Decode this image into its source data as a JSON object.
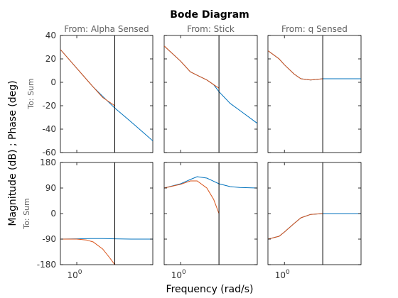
{
  "chart_data": {
    "type": "line",
    "title": "Bode Diagram",
    "xlabel": "Frequency  (rad/s)",
    "ylabel": "Magnitude (dB) ; Phase (deg)",
    "row_label": "To: Sum",
    "x_scale": "log",
    "xlim": [
      0.5,
      25
    ],
    "x_tick_label": "10^0",
    "x_tick_value": 1,
    "vline_x": 5.0,
    "grid": false,
    "colors": {
      "series_a": "#0072BD",
      "series_b": "#D95319"
    },
    "columns": [
      {
        "title": "From: Alpha Sensed"
      },
      {
        "title": "From: Stick"
      },
      {
        "title": "From: q Sensed"
      }
    ],
    "rows": [
      {
        "name": "magnitude",
        "ylim": [
          -60,
          40
        ],
        "yticks": [
          "40",
          "20",
          "0",
          "-20",
          "-40",
          "-60"
        ],
        "ytick_values": [
          40,
          20,
          0,
          -20,
          -40,
          -60
        ]
      },
      {
        "name": "phase",
        "ylim": [
          -180,
          180
        ],
        "yticks": [
          "180",
          "90",
          "0",
          "-90",
          "-180"
        ],
        "ytick_values": [
          180,
          90,
          0,
          -90,
          -180
        ]
      }
    ],
    "panels": [
      {
        "row": 0,
        "col": 0,
        "series": [
          {
            "color": "series_a",
            "x": [
              0.5,
              1,
              2,
              3,
              5,
              8,
              12,
              25
            ],
            "y": [
              28,
              12,
              -4,
              -12,
              -22,
              -30,
              -37,
              -50
            ]
          },
          {
            "color": "series_b",
            "x": [
              0.5,
              1,
              2,
              3,
              5
            ],
            "y": [
              28,
              12,
              -4,
              -13,
              -20
            ]
          }
        ]
      },
      {
        "row": 0,
        "col": 1,
        "series": [
          {
            "color": "series_a",
            "x": [
              0.5,
              1,
              1.5,
              2,
              3,
              4,
              5,
              8,
              12,
              25
            ],
            "y": [
              31,
              18,
              9,
              6,
              2,
              -2,
              -8,
              -18,
              -24,
              -35
            ]
          },
          {
            "color": "series_b",
            "x": [
              0.5,
              1,
              1.5,
              2,
              3,
              4,
              5
            ],
            "y": [
              31,
              18,
              9,
              6,
              2,
              -2,
              -5
            ]
          }
        ]
      },
      {
        "row": 0,
        "col": 2,
        "series": [
          {
            "color": "series_a",
            "x": [
              0.5,
              0.8,
              1,
              1.5,
              2,
              3,
              5,
              8,
              25
            ],
            "y": [
              27,
              20,
              15,
              7,
              3,
              2,
              3,
              3,
              3
            ]
          },
          {
            "color": "series_b",
            "x": [
              0.5,
              0.8,
              1,
              1.5,
              2,
              3,
              5
            ],
            "y": [
              27,
              20,
              15,
              7,
              3,
              2,
              3
            ]
          }
        ]
      },
      {
        "row": 1,
        "col": 0,
        "series": [
          {
            "color": "series_a",
            "x": [
              0.5,
              1,
              2,
              3,
              5,
              10,
              25
            ],
            "y": [
              -90,
              -89,
              -88,
              -88,
              -89,
              -90,
              -90
            ]
          },
          {
            "color": "series_b",
            "x": [
              0.5,
              1,
              1.5,
              2,
              3,
              4,
              5
            ],
            "y": [
              -90,
              -90,
              -93,
              -100,
              -125,
              -155,
              -180
            ]
          }
        ]
      },
      {
        "row": 1,
        "col": 1,
        "series": [
          {
            "color": "series_a",
            "x": [
              0.5,
              1,
              1.5,
              2,
              3,
              5,
              8,
              12,
              25
            ],
            "y": [
              90,
              105,
              120,
              130,
              125,
              105,
              95,
              92,
              90
            ]
          },
          {
            "color": "series_b",
            "x": [
              0.5,
              1,
              1.5,
              2,
              3,
              4,
              5
            ],
            "y": [
              90,
              103,
              115,
              115,
              90,
              50,
              0
            ]
          }
        ]
      },
      {
        "row": 1,
        "col": 2,
        "series": [
          {
            "color": "series_a",
            "x": [
              0.5,
              0.8,
              1,
              1.5,
              2,
              3,
              5,
              8,
              25
            ],
            "y": [
              -90,
              -80,
              -65,
              -35,
              -15,
              -3,
              0,
              0,
              0
            ]
          },
          {
            "color": "series_b",
            "x": [
              0.5,
              0.8,
              1,
              1.5,
              2,
              3,
              5
            ],
            "y": [
              -90,
              -80,
              -65,
              -35,
              -15,
              -3,
              0
            ]
          }
        ]
      }
    ]
  }
}
